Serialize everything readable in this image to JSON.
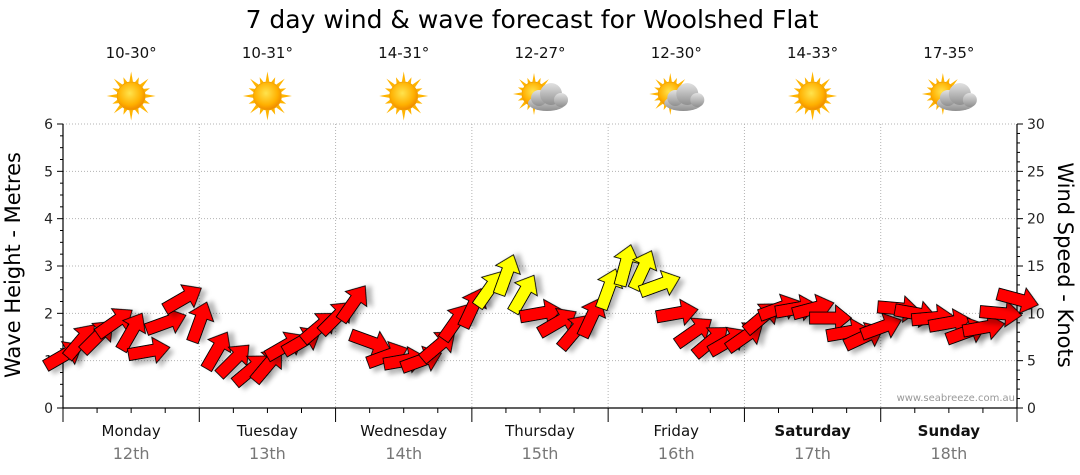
{
  "chart_data": {
    "type": "line",
    "title": "7 day wind & wave forecast for Woolshed Flat",
    "ylabel_left": "Wave Height - Metres",
    "ylabel_right": "Wind Speed - Knots",
    "left_axis": {
      "min": 0,
      "max": 6,
      "ticks": [
        "0",
        "1",
        "2",
        "3",
        "4",
        "5",
        "6"
      ]
    },
    "right_axis": {
      "min": 0,
      "max": 30,
      "ticks": [
        "0",
        "5",
        "10",
        "15",
        "20",
        "25",
        "30"
      ]
    },
    "days": [
      {
        "name": "Monday",
        "date": "12th",
        "temp": "10-30°",
        "weather": "sunny",
        "bold": false
      },
      {
        "name": "Tuesday",
        "date": "13th",
        "temp": "10-31°",
        "weather": "sunny",
        "bold": false
      },
      {
        "name": "Wednesday",
        "date": "14th",
        "temp": "14-31°",
        "weather": "sunny",
        "bold": false
      },
      {
        "name": "Thursday",
        "date": "15th",
        "temp": "12-27°",
        "weather": "partly-cloudy",
        "bold": false
      },
      {
        "name": "Friday",
        "date": "16th",
        "temp": "12-30°",
        "weather": "partly-cloudy",
        "bold": false
      },
      {
        "name": "Saturday",
        "date": "17th",
        "temp": "14-33°",
        "weather": "sunny",
        "bold": true
      },
      {
        "name": "Sunday",
        "date": "18th",
        "temp": "17-35°",
        "weather": "partly-cloudy",
        "bold": true
      }
    ],
    "wind_series": {
      "name": "Wind Speed (knots)",
      "time_hours": [
        0,
        3,
        6,
        9,
        12,
        15,
        18,
        21,
        24,
        27,
        30,
        33,
        36,
        39,
        42,
        45,
        48,
        51,
        54,
        57,
        60,
        63,
        66,
        69,
        72,
        75,
        78,
        81,
        84,
        87,
        90,
        93,
        96,
        99,
        102,
        105,
        108,
        111,
        114,
        117,
        120,
        123,
        126,
        129,
        132,
        135,
        138,
        141,
        144,
        147,
        150,
        153,
        156,
        159,
        162,
        165,
        168
      ],
      "speed_knots": [
        5.5,
        7,
        7.5,
        9,
        8,
        6,
        9,
        11.5,
        9,
        6,
        5,
        4,
        4.5,
        6.5,
        7,
        8.5,
        9.5,
        11,
        7,
        5.5,
        5,
        5,
        6.5,
        9,
        10.5,
        12.5,
        14,
        12,
        10,
        9,
        8,
        9.5,
        12.5,
        15,
        14.5,
        13,
        10,
        8,
        7,
        7,
        7.5,
        9.5,
        10.5,
        10.5,
        10.5,
        9.5,
        8,
        7.5,
        8.5,
        10.5,
        10,
        9.5,
        9,
        8,
        8.5,
        10,
        11.5
      ],
      "direction_deg": [
        60,
        40,
        45,
        55,
        30,
        80,
        70,
        60,
        20,
        30,
        45,
        50,
        40,
        60,
        60,
        50,
        45,
        35,
        110,
        70,
        80,
        70,
        50,
        35,
        25,
        35,
        20,
        30,
        80,
        60,
        40,
        25,
        20,
        15,
        25,
        70,
        80,
        55,
        50,
        60,
        55,
        50,
        70,
        80,
        75,
        90,
        80,
        65,
        70,
        95,
        100,
        85,
        80,
        70,
        80,
        95,
        105
      ]
    },
    "wave_series": {
      "name": "Wave Height (metres)",
      "values": []
    },
    "colour_scale": {
      "below_12_knots": "#ff0000",
      "12_knots_and_above": "#ffff00",
      "outline": "#000000"
    },
    "grid": "dotted",
    "credit": "www.seabreeze.com.au"
  }
}
